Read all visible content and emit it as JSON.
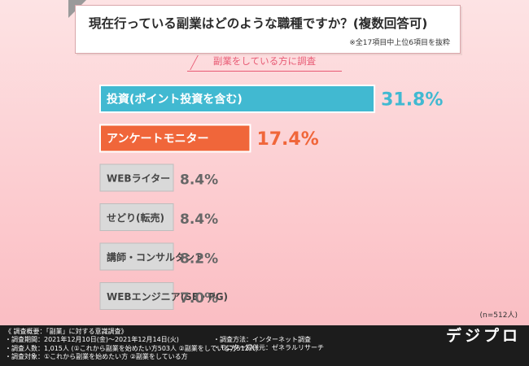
{
  "header": {
    "title": "現在行っている副業はどのような職種ですか？(複数回答可)",
    "note": "※全17項目中上位6項目を抜粋",
    "subtitle": "副業をしている方に調査"
  },
  "chart_data": {
    "type": "bar",
    "orientation": "horizontal",
    "categories": [
      "投資(ポイント投資を含む)",
      "アンケートモニター",
      "WEBライター",
      "せどり(転売)",
      "講師・コンサルタント",
      "WEBエンジニア(SE・PG)"
    ],
    "values": [
      31.8,
      17.4,
      8.4,
      8.4,
      8.2,
      7.0
    ],
    "value_labels": [
      "31.8%",
      "17.4%",
      "8.4%",
      "8.4%",
      "8.2%",
      "7.0%"
    ],
    "unit": "%",
    "colors": [
      "#41b9d1",
      "#f0663a",
      "#d9d9d9",
      "#d9d9d9",
      "#d9d9d9",
      "#d9d9d9"
    ],
    "value_label_colors": [
      "#41b9d1",
      "#f0663a",
      "#666666",
      "#666666",
      "#666666",
      "#666666"
    ],
    "sample_size": "(n=512人)"
  },
  "footer": {
    "lines_left": [
      "《 調査概要：「副業」に対する意識調査》",
      "・調査期間：2021年12月10日(金)～2021年12月14日(火)",
      "・調査人数：1,015人 (①これから副業を始めたい方503人 ②副業をしている方512人)",
      "・調査対象：①これから副業を始めたい方 ②副業をしている方"
    ],
    "lines_right": [
      "・調査方法：インターネット調査",
      "",
      "・モニター提供元：ゼネラルリサーチ"
    ],
    "logo": "デジプロ"
  }
}
